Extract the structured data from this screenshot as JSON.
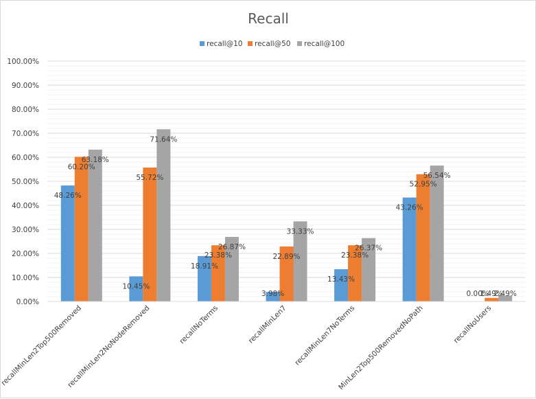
{
  "chart_data": {
    "type": "bar",
    "title": "Recall",
    "categories": [
      "recallMinLen2Top500Removed",
      "recallMinLen2NoNodeRemoved",
      "recallNoTerms",
      "recallMinLen7",
      "recallMinLen7NoTerms",
      "MinLen2Top500RemovedNoPath",
      "recallNoUsers"
    ],
    "series": [
      {
        "name": "recall@10",
        "color": "#5b9bd5",
        "values": [
          48.26,
          10.45,
          18.91,
          3.98,
          13.43,
          43.26,
          0.0
        ],
        "labels": [
          "48.26%",
          "10.45%",
          "18.91%",
          "3.98%",
          "13.43%",
          "43.26%",
          "0.00%"
        ]
      },
      {
        "name": "recall@50",
        "color": "#ed7d31",
        "values": [
          60.2,
          55.72,
          23.38,
          22.89,
          23.38,
          52.95,
          1.49
        ],
        "labels": [
          "60.20%",
          "55.72%",
          "23.38%",
          "22.89%",
          "23.38%",
          "52.95%",
          "1.49%"
        ]
      },
      {
        "name": "recall@100",
        "color": "#a5a5a5",
        "values": [
          63.18,
          71.64,
          26.87,
          33.33,
          26.37,
          56.54,
          2.49
        ],
        "labels": [
          "63.18%",
          "71.64%",
          "26.87%",
          "33.33%",
          "26.37%",
          "56.54%",
          "2.49%"
        ]
      }
    ],
    "yticks": [
      "0.00%",
      "10.00%",
      "20.00%",
      "30.00%",
      "40.00%",
      "50.00%",
      "60.00%",
      "70.00%",
      "80.00%",
      "90.00%",
      "100.00%"
    ],
    "ylim": [
      0,
      100
    ],
    "grid": true,
    "legend_position": "top"
  }
}
